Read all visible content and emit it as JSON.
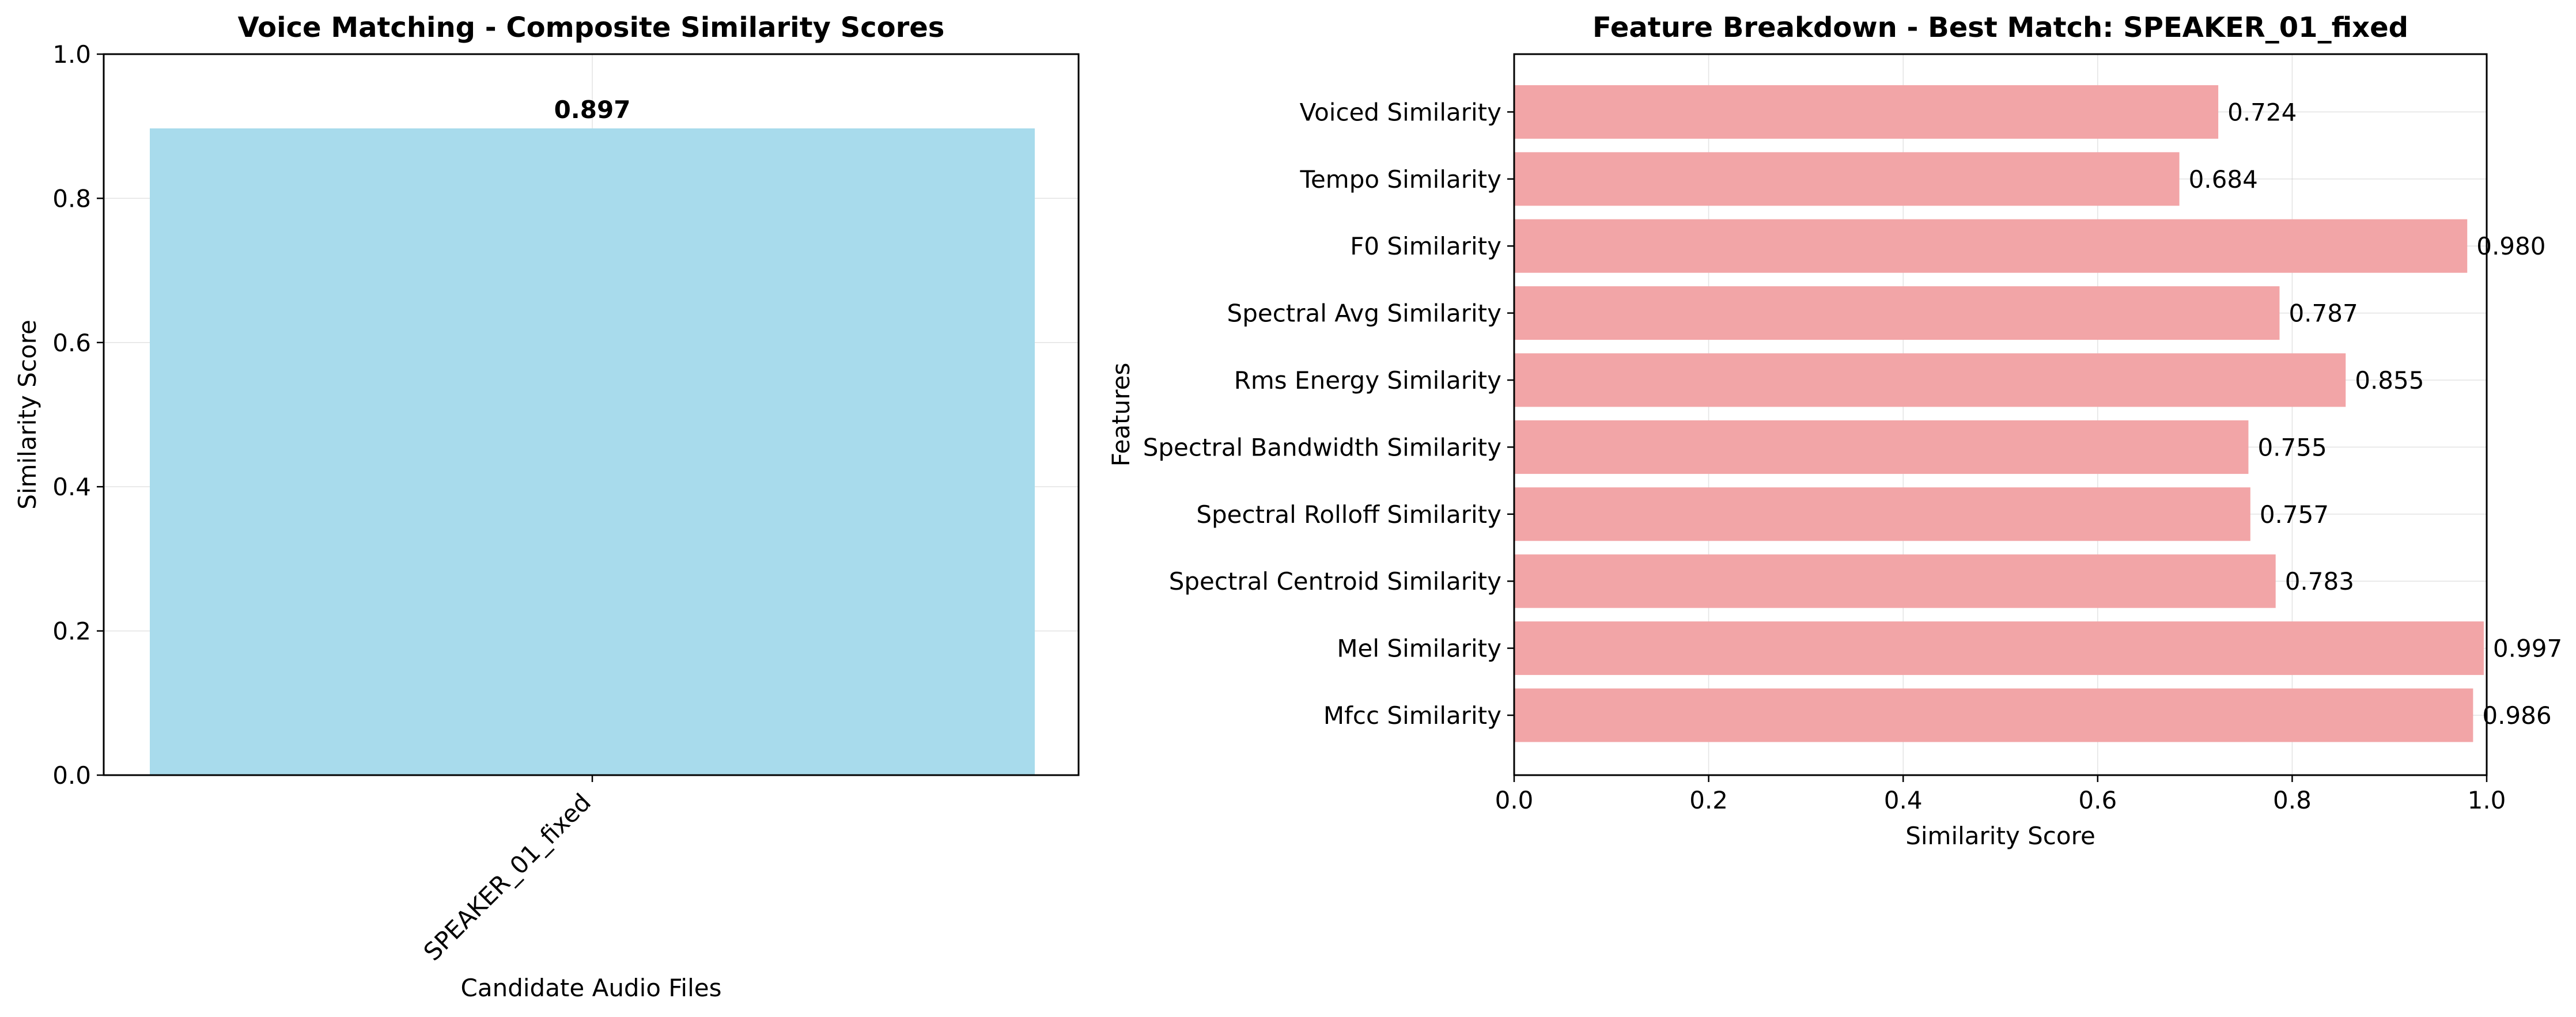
{
  "chart_data": [
    {
      "type": "bar",
      "orientation": "vertical",
      "title": "Voice Matching - Composite Similarity Scores",
      "xlabel": "Candidate Audio Files",
      "ylabel": "Similarity Score",
      "categories": [
        "SPEAKER_01_fixed"
      ],
      "values": [
        0.897
      ],
      "data_labels": [
        "0.897"
      ],
      "ylim": [
        0,
        1.0
      ],
      "yticks": [
        "0.0",
        "0.2",
        "0.4",
        "0.6",
        "0.8",
        "1.0"
      ],
      "grid": true,
      "bar_color": "#a8dbec"
    },
    {
      "type": "bar",
      "orientation": "horizontal",
      "title": "Feature Breakdown - Best Match: SPEAKER_01_fixed",
      "xlabel": "Similarity Score",
      "ylabel": "Features",
      "categories": [
        "Mfcc Similarity",
        "Mel Similarity",
        "Spectral Centroid Similarity",
        "Spectral Rolloff Similarity",
        "Spectral Bandwidth Similarity",
        "Rms Energy Similarity",
        "Spectral Avg Similarity",
        "F0 Similarity",
        "Tempo Similarity",
        "Voiced Similarity"
      ],
      "values": [
        0.986,
        0.997,
        0.783,
        0.757,
        0.755,
        0.855,
        0.787,
        0.98,
        0.684,
        0.724
      ],
      "data_labels": [
        "0.986",
        "0.997",
        "0.783",
        "0.757",
        "0.755",
        "0.855",
        "0.787",
        "0.980",
        "0.684",
        "0.724"
      ],
      "xlim": [
        0,
        1.0
      ],
      "xticks": [
        "0.0",
        "0.2",
        "0.4",
        "0.6",
        "0.8",
        "1.0"
      ],
      "grid": true,
      "bar_color": "#f2a5a7"
    }
  ]
}
